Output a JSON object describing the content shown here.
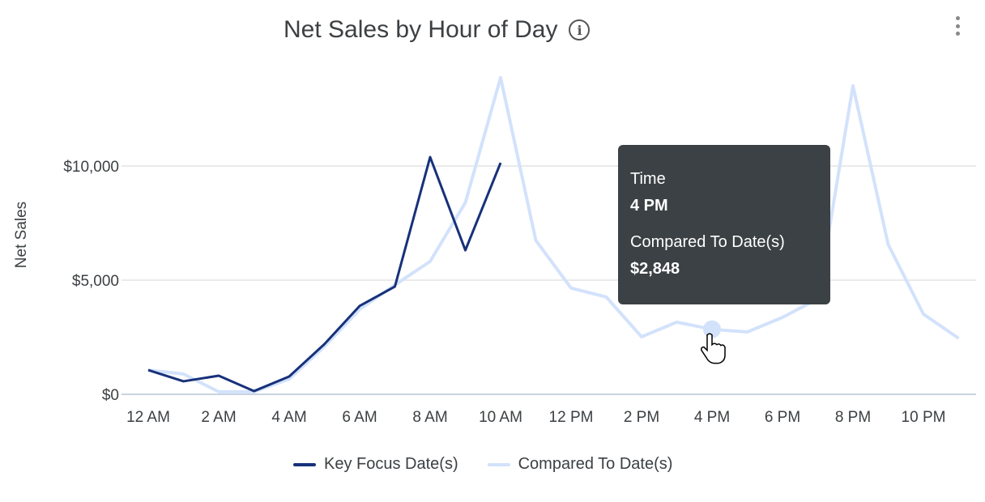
{
  "title": "Net Sales by Hour of Day",
  "icons": {
    "info": "info-circle-icon",
    "menu": "more-vertical-icon",
    "cursor": "hand-pointer-icon"
  },
  "tooltip": {
    "label1": "Time",
    "value1": "4 PM",
    "label2": "Compared To Date(s)",
    "value2": "$2,848"
  },
  "chart_data": {
    "type": "line",
    "title": "Net Sales by Hour of Day",
    "ylabel": "Net Sales",
    "xlabel": "",
    "ylim": [
      0,
      14000
    ],
    "yticks": [
      0,
      5000,
      10000
    ],
    "ytick_labels": [
      "$0",
      "$5,000",
      "$10,000"
    ],
    "x": [
      "12 AM",
      "1 AM",
      "2 AM",
      "3 AM",
      "4 AM",
      "5 AM",
      "6 AM",
      "7 AM",
      "8 AM",
      "9 AM",
      "10 AM",
      "11 AM",
      "12 PM",
      "1 PM",
      "2 PM",
      "3 PM",
      "4 PM",
      "5 PM",
      "6 PM",
      "7 PM",
      "8 PM",
      "9 PM",
      "10 PM",
      "11 PM"
    ],
    "xtick_labels": [
      "12 AM",
      "2 AM",
      "4 AM",
      "6 AM",
      "8 AM",
      "10 AM",
      "12 PM",
      "2 PM",
      "4 PM",
      "6 PM",
      "8 PM",
      "10 PM"
    ],
    "grid": "horizontal",
    "legend_placement": "bottom",
    "series": [
      {
        "name": "Key Focus Date(s)",
        "color": "#17317a",
        "values": [
          1060,
          570,
          815,
          140,
          780,
          2200,
          3870,
          4720,
          10390,
          6310,
          10140,
          null,
          null,
          null,
          null,
          null,
          null,
          null,
          null,
          null,
          null,
          null,
          null,
          null
        ]
      },
      {
        "name": "Compared To Date(s)",
        "color": "#d3e2fb",
        "values": [
          1060,
          890,
          110,
          110,
          670,
          2090,
          3720,
          4790,
          5820,
          8400,
          13870,
          6740,
          4650,
          4260,
          2520,
          3160,
          2848,
          2730,
          3370,
          4180,
          13510,
          6560,
          3510,
          2450
        ]
      }
    ],
    "highlighted_point": {
      "series": "Compared To Date(s)",
      "x": "4 PM",
      "value": 2848
    }
  }
}
